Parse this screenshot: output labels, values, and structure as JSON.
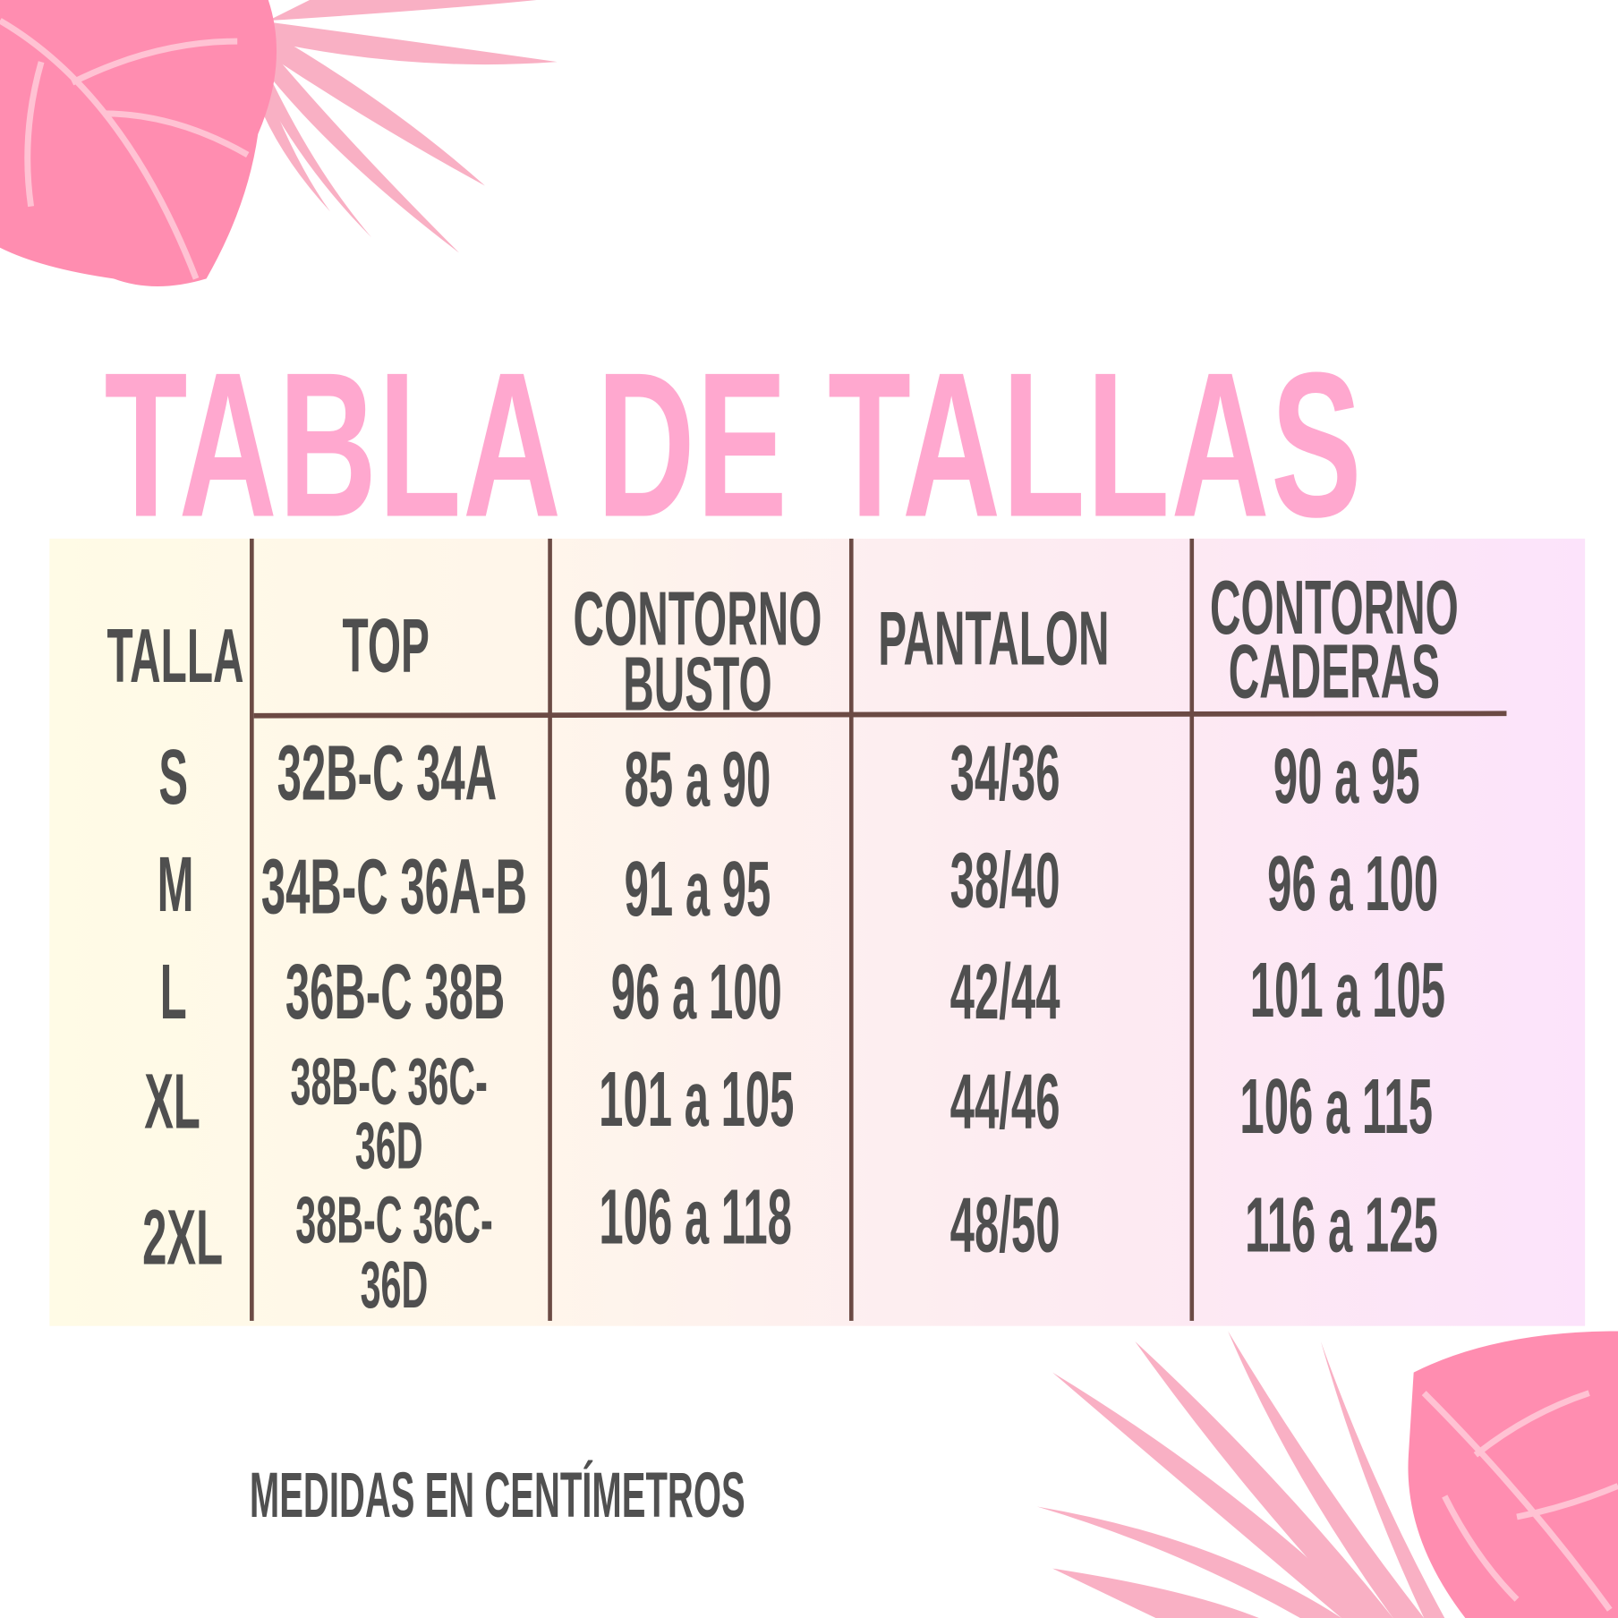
{
  "title": "TABLA DE TALLAS",
  "colors": {
    "title": "#ffa8cf",
    "text": "#4f4f4f",
    "lines": "#6b4a44",
    "leaves": "#ff8fb3"
  },
  "decorations": [
    "tropical-leaf-top-left",
    "tropical-leaf-bottom-right"
  ],
  "table": {
    "headers": {
      "talla": "TALLA",
      "top": "TOP",
      "busto_1": "CONTORNO",
      "busto_2": "BUSTO",
      "pantalon": "PANTALON",
      "caderas_1": "CONTORNO",
      "caderas_2": "CADERAS"
    },
    "rows": [
      {
        "talla": "S",
        "top": "32B-C 34A",
        "busto": "85 a 90",
        "pantalon": "34/36",
        "caderas": "90 a 95"
      },
      {
        "talla": "M",
        "top": "34B-C 36A-B",
        "busto": "91 a 95",
        "pantalon": "38/40",
        "caderas": "96 a 100"
      },
      {
        "talla": "L",
        "top": "36B-C 38B",
        "busto": "96 a 100",
        "pantalon": "42/44",
        "caderas": "101 a 105"
      },
      {
        "talla": "XL",
        "top_1": "38B-C 36C-",
        "top_2": "36D",
        "busto": "101 a 105",
        "pantalon": "44/46",
        "caderas": "106 a 115"
      },
      {
        "talla": "2XL",
        "top_1": "38B-C 36C-",
        "top_2": "36D",
        "busto": "106 a 118",
        "pantalon": "48/50",
        "caderas": "116 a 125"
      }
    ]
  },
  "footer": "MEDIDAS EN CENTÍMETROS"
}
